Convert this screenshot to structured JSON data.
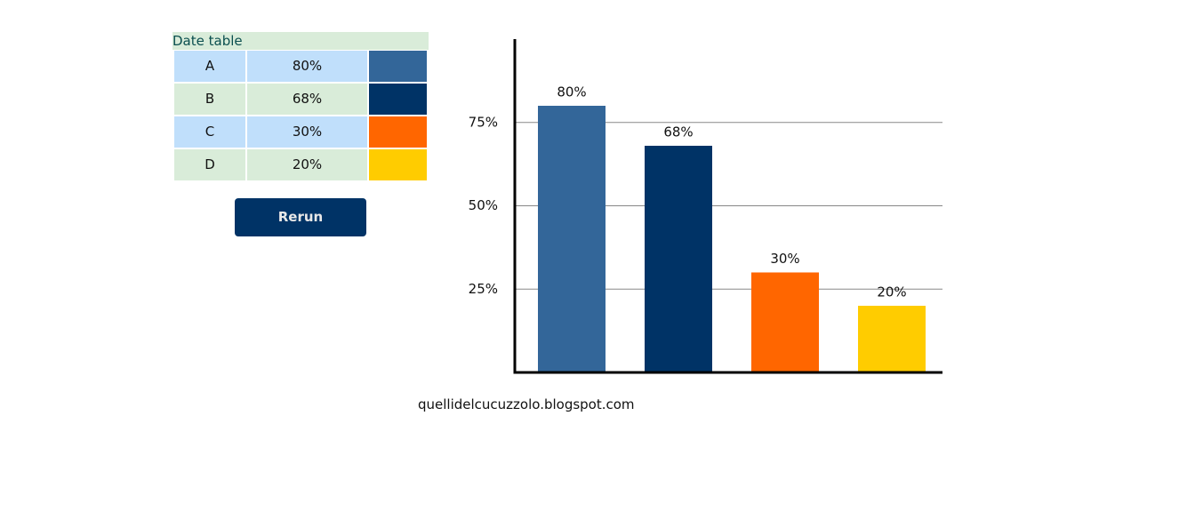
{
  "table": {
    "caption": "Date table",
    "rows": [
      {
        "label": "A",
        "value": "80%",
        "color": "#336699"
      },
      {
        "label": "B",
        "value": "68%",
        "color": "#003366"
      },
      {
        "label": "C",
        "value": "30%",
        "color": "#ff6600"
      },
      {
        "label": "D",
        "value": "20%",
        "color": "#ffcc00"
      }
    ]
  },
  "button": {
    "label": "Rerun"
  },
  "chart_data": {
    "type": "bar",
    "values": [
      80,
      68,
      30,
      20
    ],
    "value_labels": [
      "80%",
      "68%",
      "30%",
      "20%"
    ],
    "colors": [
      "#336699",
      "#003366",
      "#ff6600",
      "#ffcc00"
    ],
    "ylim": [
      0,
      100
    ],
    "yticks": [
      {
        "value": 25,
        "label": "25%"
      },
      {
        "value": 50,
        "label": "50%"
      },
      {
        "value": 75,
        "label": "75%"
      }
    ],
    "grid": true
  },
  "footer": "quellidelcucuzzolo.blogspot.com"
}
